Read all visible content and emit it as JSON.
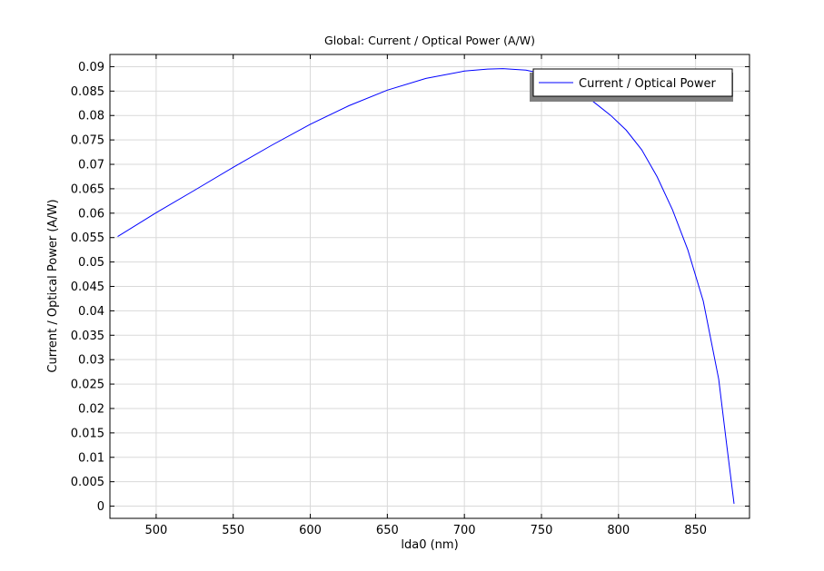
{
  "chart_data": {
    "type": "line",
    "title": "Global: Current / Optical Power (A/W)",
    "xlabel": "lda0 (nm)",
    "ylabel": "Current / Optical Power (A/W)",
    "xlim": [
      470,
      885
    ],
    "ylim": [
      -0.0025,
      0.0925
    ],
    "grid": true,
    "legend_position": "top-right",
    "x_ticks": [
      500,
      550,
      600,
      650,
      700,
      750,
      800,
      850
    ],
    "x_tick_labels": [
      "500",
      "550",
      "600",
      "650",
      "700",
      "750",
      "800",
      "850"
    ],
    "y_ticks": [
      0,
      0.005,
      0.01,
      0.015,
      0.02,
      0.025,
      0.03,
      0.035,
      0.04,
      0.045,
      0.05,
      0.055,
      0.06,
      0.065,
      0.07,
      0.075,
      0.08,
      0.085,
      0.09
    ],
    "y_tick_labels": [
      "0",
      "0.005",
      "0.01",
      "0.015",
      "0.02",
      "0.025",
      "0.03",
      "0.035",
      "0.04",
      "0.045",
      "0.05",
      "0.055",
      "0.06",
      "0.065",
      "0.07",
      "0.075",
      "0.08",
      "0.085",
      "0.09"
    ],
    "series": [
      {
        "name": "Current / Optical Power",
        "color": "#0000ff",
        "x": [
          475,
          500,
          525,
          550,
          575,
          600,
          625,
          650,
          675,
          700,
          715,
          725,
          740,
          750,
          765,
          775,
          785,
          795,
          805,
          815,
          825,
          835,
          845,
          855,
          865,
          870,
          875
        ],
        "y": [
          0.0552,
          0.0601,
          0.0647,
          0.0694,
          0.0739,
          0.0782,
          0.082,
          0.0852,
          0.0876,
          0.0891,
          0.0895,
          0.0896,
          0.0893,
          0.0886,
          0.0868,
          0.085,
          0.0825,
          0.08,
          0.077,
          0.073,
          0.0675,
          0.0607,
          0.0525,
          0.042,
          0.026,
          0.013,
          0.0005
        ]
      }
    ]
  }
}
